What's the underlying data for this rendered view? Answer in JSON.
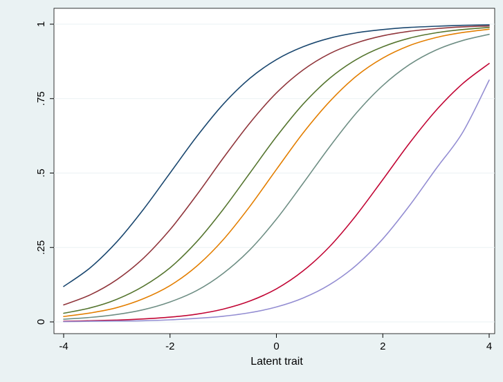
{
  "chart_data": {
    "type": "line",
    "xlabel": "Latent trait",
    "ylabel": "",
    "xlim": [
      -4,
      4
    ],
    "ylim": [
      0,
      1
    ],
    "x_ticks": [
      {
        "value": -4,
        "label": "-4"
      },
      {
        "value": -2,
        "label": "-2"
      },
      {
        "value": 0,
        "label": "0"
      },
      {
        "value": 2,
        "label": "2"
      },
      {
        "value": 4,
        "label": "4"
      }
    ],
    "y_ticks": [
      {
        "value": 0,
        "label": "0"
      },
      {
        "value": 0.25,
        "label": ".25"
      },
      {
        "value": 0.5,
        "label": ".5"
      },
      {
        "value": 0.75,
        "label": ".75"
      },
      {
        "value": 1,
        "label": "1"
      }
    ],
    "grid": "horizontal",
    "legend": "none",
    "x": [
      -4,
      -3.5,
      -3,
      -2.5,
      -2,
      -1.5,
      -1,
      -0.5,
      0,
      0.5,
      1,
      1.5,
      2,
      2.5,
      3,
      3.5,
      4
    ],
    "series": [
      {
        "color": "#1a476f",
        "values": [
          0.119,
          0.182,
          0.269,
          0.378,
          0.5,
          0.622,
          0.731,
          0.818,
          0.881,
          0.924,
          0.953,
          0.971,
          0.982,
          0.989,
          0.993,
          0.996,
          0.998
        ]
      },
      {
        "color": "#90353b",
        "values": [
          0.057,
          0.091,
          0.142,
          0.214,
          0.31,
          0.426,
          0.55,
          0.668,
          0.769,
          0.846,
          0.901,
          0.937,
          0.961,
          0.976,
          0.985,
          0.991,
          0.994
        ]
      },
      {
        "color": "#55752f",
        "values": [
          0.029,
          0.047,
          0.076,
          0.12,
          0.182,
          0.269,
          0.378,
          0.5,
          0.622,
          0.731,
          0.818,
          0.881,
          0.924,
          0.953,
          0.971,
          0.982,
          0.989
        ]
      },
      {
        "color": "#e37e00",
        "values": [
          0.018,
          0.03,
          0.048,
          0.078,
          0.122,
          0.187,
          0.276,
          0.388,
          0.512,
          0.634,
          0.74,
          0.825,
          0.886,
          0.928,
          0.955,
          0.972,
          0.983
        ]
      },
      {
        "color": "#6e8e84",
        "values": [
          0.009,
          0.015,
          0.025,
          0.041,
          0.067,
          0.105,
          0.163,
          0.242,
          0.345,
          0.465,
          0.588,
          0.701,
          0.794,
          0.864,
          0.913,
          0.945,
          0.966
        ]
      },
      {
        "color": "#c10534",
        "values": [
          0.002,
          0.004,
          0.006,
          0.01,
          0.016,
          0.026,
          0.043,
          0.07,
          0.111,
          0.171,
          0.253,
          0.358,
          0.478,
          0.6,
          0.71,
          0.8,
          0.868
        ]
      },
      {
        "color": "#938dd2",
        "values": [
          0.001,
          0.002,
          0.003,
          0.004,
          0.007,
          0.012,
          0.019,
          0.031,
          0.05,
          0.08,
          0.125,
          0.19,
          0.279,
          0.39,
          0.514,
          0.636,
          0.812
        ]
      }
    ]
  }
}
